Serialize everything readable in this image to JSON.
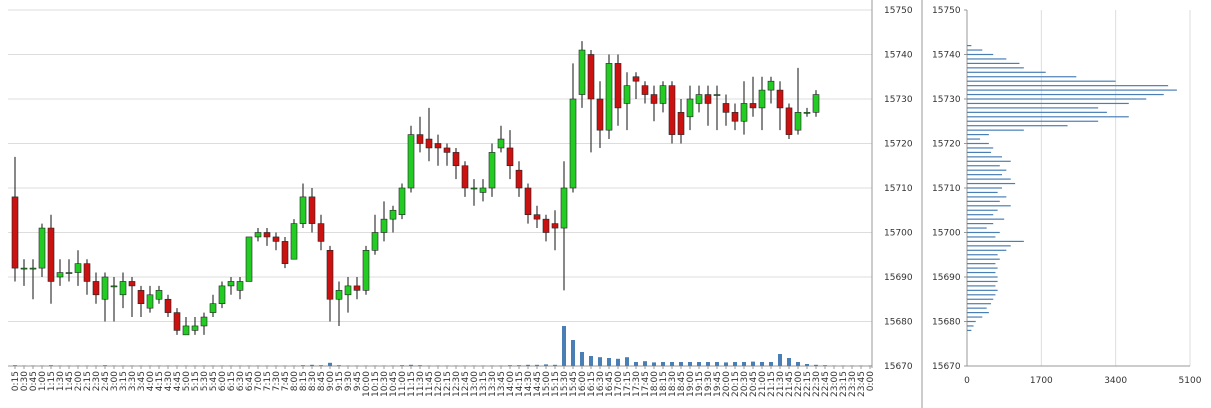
{
  "chart_data": [
    {
      "type": "candlestick",
      "categories": [
        "0:15",
        "0:30",
        "0:45",
        "1:00",
        "1:15",
        "1:30",
        "1:45",
        "2:00",
        "2:15",
        "2:30",
        "2:45",
        "3:00",
        "3:15",
        "3:30",
        "3:45",
        "4:00",
        "4:15",
        "4:30",
        "4:45",
        "5:00",
        "5:15",
        "5:30",
        "5:45",
        "6:00",
        "6:15",
        "6:30",
        "6:45",
        "7:00",
        "7:15",
        "7:30",
        "7:45",
        "8:00",
        "8:15",
        "8:30",
        "8:45",
        "9:00",
        "9:15",
        "9:30",
        "9:45",
        "10:00",
        "10:15",
        "10:30",
        "10:45",
        "11:00",
        "11:15",
        "11:30",
        "11:45",
        "12:00",
        "12:15",
        "12:30",
        "12:45",
        "13:00",
        "13:15",
        "13:30",
        "13:45",
        "14:00",
        "14:15",
        "14:30",
        "14:45",
        "15:00",
        "15:15",
        "15:30",
        "15:45",
        "16:00",
        "16:15",
        "16:30",
        "16:45",
        "17:00",
        "17:15",
        "17:30",
        "17:45",
        "18:00",
        "18:15",
        "18:30",
        "18:45",
        "19:00",
        "19:15",
        "19:30",
        "19:45",
        "20:00",
        "20:15",
        "20:30",
        "20:45",
        "21:00",
        "21:15",
        "21:30",
        "21:45",
        "22:00",
        "22:15",
        "22:30",
        "22:45",
        "23:00",
        "23:15",
        "23:30",
        "23:45",
        "0:00"
      ],
      "open": [
        15708,
        15692,
        15692,
        15692,
        15701,
        15690,
        15691,
        15691,
        15693,
        15689,
        15685,
        15688,
        15686,
        15689,
        15687,
        15683,
        15685,
        15685,
        15682,
        15677,
        15678,
        15679,
        15682,
        15684,
        15688,
        15687,
        15689,
        15699,
        15700,
        15699,
        15698,
        15694,
        15702,
        15708,
        15702,
        15696,
        15685,
        15686,
        15688,
        15687,
        15696,
        15700,
        15703,
        15704,
        15710,
        15722,
        15721,
        15720,
        15719,
        15718,
        15715,
        15710,
        15709,
        15710,
        15719,
        15719,
        15714,
        15710,
        15704,
        15703,
        15702,
        15701,
        15710,
        15731,
        15740,
        15730,
        15723,
        15738,
        15729,
        15735,
        15733,
        15731,
        15729,
        15733,
        15727,
        15726,
        15729,
        15731,
        15731,
        15729,
        15727,
        15725,
        15729,
        15728,
        15732,
        15732,
        15728,
        15723,
        15727,
        15727,
        null,
        null,
        null,
        null,
        null,
        null
      ],
      "high": [
        15717,
        15694,
        15694,
        15702,
        15704,
        15694,
        15694,
        15696,
        15694,
        15691,
        15691,
        15690,
        15691,
        15690,
        15688,
        15688,
        15688,
        15686,
        15683,
        15681,
        15681,
        15682,
        15686,
        15689,
        15690,
        15690,
        15699,
        15701,
        15701,
        15700,
        15699,
        15703,
        15711,
        15710,
        15704,
        15697,
        15689,
        15690,
        15690,
        15697,
        15704,
        15707,
        15706,
        15711,
        15724,
        15726,
        15728,
        15722,
        15720,
        15719,
        15716,
        15712,
        15712,
        15720,
        15724,
        15723,
        15716,
        15711,
        15706,
        15704,
        15705,
        15716,
        15738,
        15743,
        15741,
        15734,
        15740,
        15740,
        15736,
        15736,
        15734,
        15733,
        15734,
        15734,
        15730,
        15733,
        15733,
        15733,
        15733,
        15731,
        15729,
        15734,
        15735,
        15735,
        15735,
        15734,
        15729,
        15737,
        15728,
        15732,
        null,
        null,
        null,
        null,
        null,
        null
      ],
      "low": [
        15689,
        15688,
        15685,
        15690,
        15684,
        15688,
        15689,
        15688,
        15686,
        15684,
        15680,
        15680,
        15683,
        15681,
        15681,
        15682,
        15684,
        15681,
        15677,
        15677,
        15677,
        15677,
        15681,
        15683,
        15686,
        15685,
        15689,
        15698,
        15697,
        15696,
        15692,
        15694,
        15701,
        15700,
        15696,
        15680,
        15679,
        15682,
        15685,
        15686,
        15695,
        15698,
        15700,
        15703,
        15709,
        15718,
        15716,
        15715,
        15715,
        15712,
        15708,
        15706,
        15707,
        15708,
        15718,
        15712,
        15708,
        15702,
        15701,
        15698,
        15696,
        15687,
        15709,
        15728,
        15718,
        15719,
        15721,
        15724,
        15723,
        15730,
        15729,
        15725,
        15727,
        15720,
        15720,
        15723,
        15727,
        15724,
        15723,
        15724,
        15723,
        15722,
        15726,
        15723,
        15729,
        15723,
        15721,
        15722,
        15726,
        15726,
        null,
        null,
        null,
        null,
        null,
        null
      ],
      "close": [
        15692,
        15692,
        15692,
        15701,
        15689,
        15691,
        15691,
        15693,
        15689,
        15686,
        15690,
        15688,
        15689,
        15688,
        15684,
        15686,
        15687,
        15682,
        15678,
        15679,
        15679,
        15681,
        15684,
        15688,
        15689,
        15689,
        15699,
        15700,
        15699,
        15698,
        15693,
        15702,
        15708,
        15702,
        15698,
        15685,
        15687,
        15688,
        15687,
        15696,
        15700,
        15703,
        15705,
        15710,
        15722,
        15720,
        15719,
        15719,
        15718,
        15715,
        15710,
        15710,
        15710,
        15718,
        15721,
        15715,
        15710,
        15704,
        15703,
        15700,
        15701,
        15710,
        15730,
        15741,
        15730,
        15723,
        15738,
        15728,
        15733,
        15734,
        15731,
        15729,
        15733,
        15722,
        15722,
        15730,
        15731,
        15729,
        15731,
        15727,
        15725,
        15729,
        15728,
        15732,
        15734,
        15728,
        15722,
        15727,
        15727,
        15731,
        null,
        null,
        null,
        null,
        null,
        null
      ],
      "volume": [
        2,
        1,
        1,
        1,
        2,
        1,
        1,
        1,
        1,
        1,
        2,
        1,
        1,
        1,
        1,
        1,
        1,
        1,
        1,
        1,
        1,
        1,
        1,
        1,
        1,
        1,
        1,
        1,
        1,
        1,
        1,
        1,
        2,
        3,
        2,
        8,
        2,
        1,
        1,
        1,
        1,
        1,
        1,
        2,
        3,
        2,
        1,
        1,
        1,
        1,
        1,
        1,
        1,
        1,
        1,
        2,
        2,
        3,
        3,
        4,
        3,
        100,
        65,
        35,
        25,
        22,
        20,
        18,
        22,
        10,
        12,
        9,
        10,
        10,
        10,
        10,
        10,
        10,
        10,
        9,
        10,
        10,
        11,
        10,
        10,
        30,
        20,
        10,
        5,
        3,
        2,
        1,
        1,
        1,
        1,
        1
      ],
      "up_color": "#22cc22",
      "down_color": "#cc1111",
      "volume_color": "#4a7fb5",
      "ylim": [
        15670,
        15750
      ],
      "yticks": [
        15670,
        15680,
        15690,
        15700,
        15710,
        15720,
        15730,
        15740,
        15750
      ],
      "grid": true
    },
    {
      "type": "volume-profile",
      "prices": [
        15742,
        15741,
        15740,
        15739,
        15738,
        15737,
        15736,
        15735,
        15734,
        15733,
        15732,
        15731,
        15730,
        15729,
        15728,
        15727,
        15726,
        15725,
        15724,
        15723,
        15722,
        15721,
        15720,
        15719,
        15718,
        15717,
        15716,
        15715,
        15714,
        15713,
        15712,
        15711,
        15710,
        15709,
        15708,
        15707,
        15706,
        15705,
        15704,
        15703,
        15702,
        15701,
        15700,
        15699,
        15698,
        15697,
        15696,
        15695,
        15694,
        15693,
        15692,
        15691,
        15690,
        15689,
        15688,
        15687,
        15686,
        15685,
        15684,
        15683,
        15682,
        15681,
        15680,
        15679,
        15678
      ],
      "values": [
        100,
        350,
        600,
        900,
        1200,
        1300,
        1800,
        2500,
        3400,
        4600,
        4800,
        4500,
        4100,
        3700,
        3000,
        3200,
        3700,
        3000,
        2300,
        1300,
        500,
        300,
        500,
        600,
        550,
        800,
        1000,
        750,
        900,
        800,
        1000,
        1100,
        800,
        700,
        900,
        750,
        1000,
        700,
        600,
        850,
        600,
        450,
        750,
        650,
        1300,
        1000,
        900,
        700,
        750,
        650,
        700,
        650,
        700,
        700,
        650,
        700,
        650,
        600,
        550,
        450,
        500,
        350,
        200,
        150,
        100
      ],
      "color": "#4a7fb5",
      "ylim": [
        15670,
        15750
      ],
      "yticks": [
        15670,
        15680,
        15690,
        15700,
        15710,
        15720,
        15730,
        15740,
        15750
      ],
      "xlim": [
        0,
        5100
      ],
      "xticks": [
        0,
        1700,
        3400,
        5100
      ],
      "grid": true
    }
  ]
}
